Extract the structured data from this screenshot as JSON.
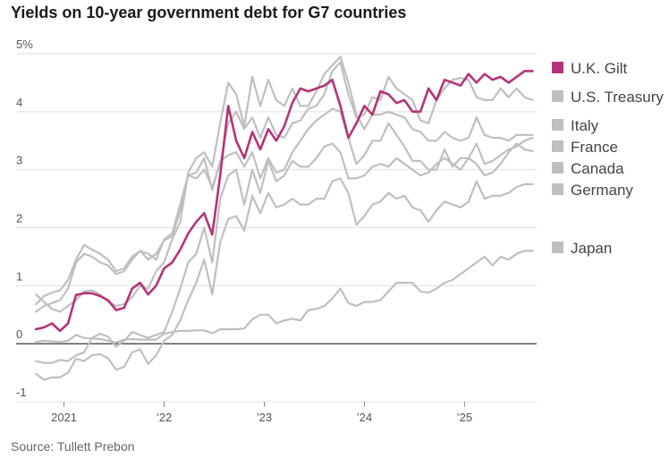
{
  "title": "Yields on 10-year government debt for G7 countries",
  "source": "Source: Tullett Prebon",
  "chart_data": {
    "type": "line",
    "title": "Yields on 10-year government debt for G7 countries",
    "xlabel": "",
    "ylabel": "",
    "ylim": [
      -1,
      5
    ],
    "y_ticks": [
      -1,
      0,
      1,
      2,
      3,
      4,
      5
    ],
    "y_tick_labels": [
      "-1",
      "0",
      "1",
      "2",
      "3",
      "4",
      "5%"
    ],
    "x_ticks": [
      2021,
      2022,
      2023,
      2024,
      2025
    ],
    "x_tick_labels": [
      "2021",
      "’22",
      "’23",
      "’24",
      "’25"
    ],
    "xlim": [
      2020.7,
      2025.72
    ],
    "grid": "horizontal",
    "legend": "right",
    "highlight_color": "#b5337a",
    "other_color": "#bfbfbf",
    "series": [
      {
        "name": "U.K. Gilt",
        "color": "#b5337a",
        "highlight": true,
        "x": [
          2020.72,
          2020.8,
          2020.88,
          2020.96,
          2021.04,
          2021.12,
          2021.2,
          2021.28,
          2021.36,
          2021.44,
          2021.52,
          2021.6,
          2021.68,
          2021.76,
          2021.84,
          2021.92,
          2022.0,
          2022.08,
          2022.16,
          2022.24,
          2022.32,
          2022.4,
          2022.48,
          2022.56,
          2022.64,
          2022.72,
          2022.8,
          2022.88,
          2022.96,
          2023.04,
          2023.12,
          2023.2,
          2023.28,
          2023.36,
          2023.44,
          2023.52,
          2023.6,
          2023.68,
          2023.76,
          2023.84,
          2023.92,
          2024.0,
          2024.08,
          2024.16,
          2024.24,
          2024.32,
          2024.4,
          2024.48,
          2024.56,
          2024.64,
          2024.72,
          2024.8,
          2024.88,
          2024.96,
          2025.04,
          2025.12,
          2025.2,
          2025.28,
          2025.36,
          2025.44,
          2025.52,
          2025.6,
          2025.68
        ],
        "y": [
          0.25,
          0.28,
          0.35,
          0.22,
          0.35,
          0.84,
          0.87,
          0.87,
          0.82,
          0.75,
          0.58,
          0.62,
          0.95,
          1.05,
          0.85,
          1.0,
          1.3,
          1.4,
          1.62,
          1.9,
          2.1,
          2.25,
          1.88,
          2.9,
          4.1,
          3.5,
          3.2,
          3.65,
          3.35,
          3.7,
          3.5,
          3.75,
          4.15,
          4.4,
          4.35,
          4.4,
          4.45,
          4.55,
          4.1,
          3.55,
          3.8,
          4.1,
          3.95,
          4.35,
          4.3,
          4.15,
          4.2,
          4.0,
          4.0,
          4.4,
          4.2,
          4.55,
          4.5,
          4.45,
          4.65,
          4.5,
          4.65,
          4.55,
          4.6,
          4.5,
          4.6,
          4.7,
          4.7
        ]
      },
      {
        "name": "U.S. Treasury",
        "color": "#bfbfbf",
        "x": [
          2020.72,
          2020.8,
          2020.88,
          2020.96,
          2021.04,
          2021.12,
          2021.2,
          2021.28,
          2021.36,
          2021.44,
          2021.52,
          2021.6,
          2021.68,
          2021.76,
          2021.84,
          2021.92,
          2022.0,
          2022.08,
          2022.16,
          2022.24,
          2022.32,
          2022.4,
          2022.48,
          2022.56,
          2022.64,
          2022.72,
          2022.8,
          2022.88,
          2022.96,
          2023.04,
          2023.12,
          2023.2,
          2023.28,
          2023.36,
          2023.44,
          2023.52,
          2023.6,
          2023.68,
          2023.76,
          2023.84,
          2023.92,
          2024.0,
          2024.08,
          2024.16,
          2024.24,
          2024.32,
          2024.4,
          2024.48,
          2024.56,
          2024.64,
          2024.72,
          2024.8,
          2024.88,
          2024.96,
          2025.04,
          2025.12,
          2025.2,
          2025.28,
          2025.36,
          2025.44,
          2025.52,
          2025.6,
          2025.68
        ],
        "y": [
          0.68,
          0.82,
          0.88,
          0.92,
          1.1,
          1.45,
          1.7,
          1.62,
          1.55,
          1.45,
          1.25,
          1.3,
          1.5,
          1.6,
          1.45,
          1.55,
          1.78,
          1.85,
          2.3,
          2.9,
          2.85,
          3.0,
          2.7,
          3.1,
          3.8,
          4.0,
          3.7,
          3.9,
          3.55,
          3.9,
          3.6,
          3.55,
          3.8,
          3.85,
          4.05,
          4.1,
          4.3,
          4.7,
          4.85,
          4.3,
          3.9,
          3.95,
          4.25,
          4.2,
          4.6,
          4.4,
          4.3,
          4.2,
          3.85,
          3.8,
          4.2,
          4.4,
          4.55,
          4.58,
          4.55,
          4.25,
          4.2,
          4.2,
          4.4,
          4.25,
          4.4,
          4.25,
          4.2
        ]
      },
      {
        "name": "Italy",
        "color": "#bfbfbf",
        "x": [
          2020.72,
          2020.8,
          2020.88,
          2020.96,
          2021.04,
          2021.12,
          2021.2,
          2021.28,
          2021.36,
          2021.44,
          2021.52,
          2021.6,
          2021.68,
          2021.76,
          2021.84,
          2021.92,
          2022.0,
          2022.08,
          2022.16,
          2022.24,
          2022.32,
          2022.4,
          2022.48,
          2022.56,
          2022.64,
          2022.72,
          2022.8,
          2022.88,
          2022.96,
          2023.04,
          2023.12,
          2023.2,
          2023.28,
          2023.36,
          2023.44,
          2023.52,
          2023.6,
          2023.68,
          2023.76,
          2023.84,
          2023.92,
          2024.0,
          2024.08,
          2024.16,
          2024.24,
          2024.32,
          2024.4,
          2024.48,
          2024.56,
          2024.64,
          2024.72,
          2024.8,
          2024.88,
          2024.96,
          2025.04,
          2025.12,
          2025.2,
          2025.28,
          2025.36,
          2025.44,
          2025.52,
          2025.6,
          2025.68
        ],
        "y": [
          0.85,
          0.72,
          0.6,
          0.55,
          0.65,
          0.75,
          0.9,
          0.92,
          0.85,
          0.72,
          0.65,
          0.68,
          0.8,
          1.0,
          0.95,
          1.25,
          1.4,
          1.8,
          2.1,
          2.95,
          3.2,
          3.3,
          3.05,
          3.8,
          4.5,
          4.3,
          3.75,
          4.6,
          4.1,
          4.55,
          4.2,
          4.1,
          4.4,
          4.1,
          4.1,
          4.35,
          4.65,
          4.8,
          4.95,
          4.5,
          3.95,
          3.7,
          3.95,
          3.95,
          4.0,
          3.95,
          3.9,
          3.7,
          3.65,
          3.5,
          3.5,
          3.65,
          3.55,
          3.5,
          3.55,
          3.9,
          3.6,
          3.55,
          3.55,
          3.5,
          3.6,
          3.6,
          3.6
        ]
      },
      {
        "name": "France",
        "color": "#bfbfbf",
        "x": [
          2020.72,
          2020.8,
          2020.88,
          2020.96,
          2021.04,
          2021.12,
          2021.2,
          2021.28,
          2021.36,
          2021.44,
          2021.52,
          2021.6,
          2021.68,
          2021.76,
          2021.84,
          2021.92,
          2022.0,
          2022.08,
          2022.16,
          2022.24,
          2022.32,
          2022.4,
          2022.48,
          2022.56,
          2022.64,
          2022.72,
          2022.8,
          2022.88,
          2022.96,
          2023.04,
          2023.12,
          2023.2,
          2023.28,
          2023.36,
          2023.44,
          2023.52,
          2023.6,
          2023.68,
          2023.76,
          2023.84,
          2023.92,
          2024.0,
          2024.08,
          2024.16,
          2024.24,
          2024.32,
          2024.4,
          2024.48,
          2024.56,
          2024.64,
          2024.72,
          2024.8,
          2024.88,
          2024.96,
          2025.04,
          2025.12,
          2025.2,
          2025.28,
          2025.36,
          2025.44,
          2025.52,
          2025.6,
          2025.68
        ],
        "y": [
          -0.3,
          -0.33,
          -0.33,
          -0.28,
          -0.3,
          -0.2,
          -0.15,
          0.1,
          0.17,
          0.12,
          -0.05,
          0.05,
          0.2,
          0.15,
          0.1,
          0.15,
          0.2,
          0.55,
          0.95,
          1.4,
          1.55,
          2.0,
          1.4,
          2.5,
          2.9,
          3.0,
          2.4,
          3.0,
          2.6,
          3.15,
          2.8,
          2.9,
          3.15,
          3.05,
          3.05,
          3.2,
          3.4,
          3.45,
          3.3,
          2.85,
          2.85,
          2.9,
          3.05,
          3.1,
          3.05,
          3.2,
          3.1,
          3.0,
          2.9,
          2.95,
          3.1,
          3.2,
          3.1,
          3.0,
          3.2,
          3.45,
          3.1,
          3.15,
          3.25,
          3.35,
          3.4,
          3.5,
          3.55
        ]
      },
      {
        "name": "Canada",
        "color": "#bfbfbf",
        "x": [
          2020.72,
          2020.8,
          2020.88,
          2020.96,
          2021.04,
          2021.12,
          2021.2,
          2021.28,
          2021.36,
          2021.44,
          2021.52,
          2021.6,
          2021.68,
          2021.76,
          2021.84,
          2021.92,
          2022.0,
          2022.08,
          2022.16,
          2022.24,
          2022.32,
          2022.4,
          2022.48,
          2022.56,
          2022.64,
          2022.72,
          2022.8,
          2022.88,
          2022.96,
          2023.04,
          2023.12,
          2023.2,
          2023.28,
          2023.36,
          2023.44,
          2023.52,
          2023.6,
          2023.68,
          2023.76,
          2023.84,
          2023.92,
          2024.0,
          2024.08,
          2024.16,
          2024.24,
          2024.32,
          2024.4,
          2024.48,
          2024.56,
          2024.64,
          2024.72,
          2024.8,
          2024.88,
          2024.96,
          2025.04,
          2025.12,
          2025.2,
          2025.28,
          2025.36,
          2025.44,
          2025.52,
          2025.6,
          2025.68
        ],
        "y": [
          0.55,
          0.65,
          0.7,
          0.75,
          0.95,
          1.4,
          1.55,
          1.5,
          1.4,
          1.35,
          1.2,
          1.25,
          1.45,
          1.6,
          1.55,
          1.45,
          1.8,
          1.9,
          2.4,
          2.9,
          2.95,
          3.2,
          2.65,
          3.15,
          3.25,
          3.3,
          3.05,
          3.3,
          2.85,
          3.2,
          2.95,
          3.0,
          3.3,
          3.5,
          3.7,
          3.85,
          3.95,
          4.05,
          4.0,
          3.55,
          3.1,
          3.25,
          3.5,
          3.5,
          3.8,
          3.6,
          3.4,
          3.15,
          3.15,
          3.0,
          3.0,
          3.35,
          3.05,
          3.2,
          3.2,
          3.1,
          2.9,
          2.95,
          3.1,
          3.3,
          3.45,
          3.35,
          3.32
        ]
      },
      {
        "name": "Germany",
        "color": "#bfbfbf",
        "x": [
          2020.72,
          2020.8,
          2020.88,
          2020.96,
          2021.04,
          2021.12,
          2021.2,
          2021.28,
          2021.36,
          2021.44,
          2021.52,
          2021.6,
          2021.68,
          2021.76,
          2021.84,
          2021.92,
          2022.0,
          2022.08,
          2022.16,
          2022.24,
          2022.32,
          2022.4,
          2022.48,
          2022.56,
          2022.64,
          2022.72,
          2022.8,
          2022.88,
          2022.96,
          2023.04,
          2023.12,
          2023.2,
          2023.28,
          2023.36,
          2023.44,
          2023.52,
          2023.6,
          2023.68,
          2023.76,
          2023.84,
          2023.92,
          2024.0,
          2024.08,
          2024.16,
          2024.24,
          2024.32,
          2024.4,
          2024.48,
          2024.56,
          2024.64,
          2024.72,
          2024.8,
          2024.88,
          2024.96,
          2025.04,
          2025.12,
          2025.2,
          2025.28,
          2025.36,
          2025.44,
          2025.52,
          2025.6,
          2025.68
        ],
        "y": [
          -0.52,
          -0.62,
          -0.58,
          -0.58,
          -0.5,
          -0.26,
          -0.3,
          -0.2,
          -0.18,
          -0.25,
          -0.45,
          -0.4,
          -0.15,
          -0.1,
          -0.35,
          -0.2,
          0.05,
          0.15,
          0.4,
          0.75,
          1.05,
          1.45,
          0.85,
          1.75,
          2.15,
          2.2,
          1.95,
          2.55,
          2.25,
          2.6,
          2.35,
          2.4,
          2.5,
          2.4,
          2.4,
          2.5,
          2.5,
          2.8,
          2.85,
          2.6,
          2.05,
          2.2,
          2.4,
          2.45,
          2.6,
          2.5,
          2.55,
          2.35,
          2.3,
          2.1,
          2.3,
          2.45,
          2.4,
          2.35,
          2.45,
          2.8,
          2.5,
          2.55,
          2.55,
          2.6,
          2.7,
          2.75,
          2.75
        ]
      },
      {
        "name": "Japan",
        "color": "#bfbfbf",
        "x": [
          2020.72,
          2020.8,
          2020.88,
          2020.96,
          2021.04,
          2021.12,
          2021.2,
          2021.28,
          2021.36,
          2021.44,
          2021.52,
          2021.6,
          2021.68,
          2021.76,
          2021.84,
          2021.92,
          2022.0,
          2022.08,
          2022.16,
          2022.24,
          2022.32,
          2022.4,
          2022.48,
          2022.56,
          2022.64,
          2022.72,
          2022.8,
          2022.88,
          2022.96,
          2023.04,
          2023.12,
          2023.2,
          2023.28,
          2023.36,
          2023.44,
          2023.52,
          2023.6,
          2023.68,
          2023.76,
          2023.84,
          2023.92,
          2024.0,
          2024.08,
          2024.16,
          2024.24,
          2024.32,
          2024.4,
          2024.48,
          2024.56,
          2024.64,
          2024.72,
          2024.8,
          2024.88,
          2024.96,
          2025.04,
          2025.12,
          2025.2,
          2025.28,
          2025.36,
          2025.44,
          2025.52,
          2025.6,
          2025.68
        ],
        "y": [
          0.03,
          0.05,
          0.04,
          0.03,
          0.05,
          0.15,
          0.1,
          0.09,
          0.08,
          0.05,
          0.02,
          0.07,
          0.08,
          0.07,
          0.07,
          0.07,
          0.17,
          0.2,
          0.22,
          0.22,
          0.23,
          0.23,
          0.18,
          0.25,
          0.25,
          0.25,
          0.26,
          0.42,
          0.5,
          0.5,
          0.35,
          0.4,
          0.43,
          0.4,
          0.58,
          0.6,
          0.65,
          0.78,
          0.95,
          0.7,
          0.65,
          0.72,
          0.72,
          0.75,
          0.9,
          1.05,
          1.05,
          1.05,
          0.9,
          0.88,
          0.95,
          1.05,
          1.1,
          1.2,
          1.3,
          1.4,
          1.5,
          1.35,
          1.5,
          1.45,
          1.55,
          1.6,
          1.6
        ]
      }
    ]
  }
}
